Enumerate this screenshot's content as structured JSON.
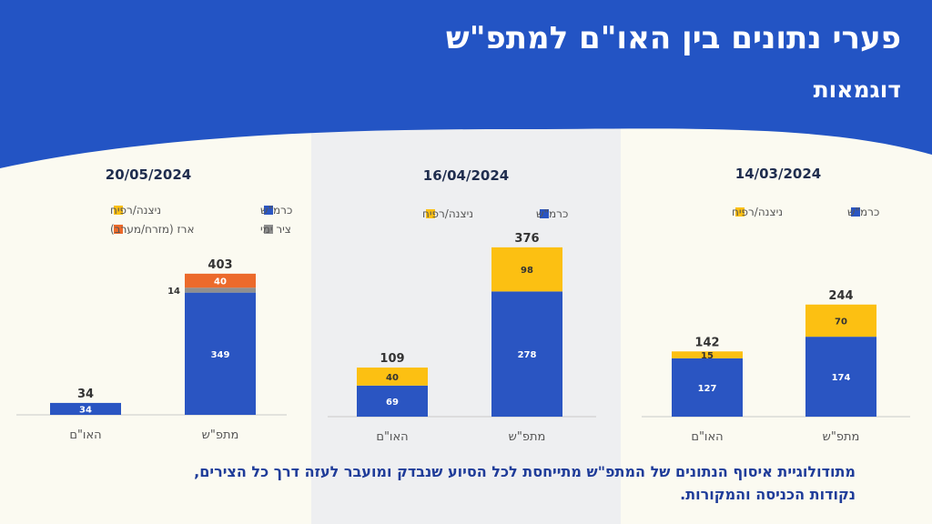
{
  "header": {
    "title": "פערי נתונים בין האו\"ם למתפ\"ש",
    "subtitle": "דוגמאות"
  },
  "footnote": {
    "line1": "מתודולוגיית איסוף הנתונים של המתפ\"ש מתייחסת לכל הסיוע שנבדק ומועבר לעזה דרך כל הצירים,",
    "line2": "נקודות הכניסה והמקורות."
  },
  "colors": {
    "header_blue": "#2354c4",
    "kerem_shalom": "#2a55c2",
    "nitzana_rafah": "#fcc012",
    "erez": "#ec6a2b",
    "sea_route": "#8f8f8f",
    "mid_panel": "#eeeff1",
    "page_bg": "#fbfaf1"
  },
  "chart_data": [
    {
      "type": "bar",
      "stacked": true,
      "title": "14/03/2024",
      "categories": [
        "האו\"ם",
        "מתפ\"ש"
      ],
      "series": [
        {
          "name": "כרמ\"ש",
          "color": "#2a55c2",
          "values": [
            127,
            174
          ]
        },
        {
          "name": "ניצנה/רפיח",
          "color": "#fcc012",
          "values": [
            15,
            70
          ]
        }
      ],
      "totals": [
        142,
        244
      ],
      "ylim": [
        0,
        420
      ]
    },
    {
      "type": "bar",
      "stacked": true,
      "title": "16/04/2024",
      "categories": [
        "האו\"ם",
        "מתפ\"ש"
      ],
      "series": [
        {
          "name": "כרמ\"ש",
          "color": "#2a55c2",
          "values": [
            69,
            278
          ]
        },
        {
          "name": "ניצנה/רפיח",
          "color": "#fcc012",
          "values": [
            40,
            98
          ]
        }
      ],
      "totals": [
        109,
        376
      ],
      "ylim": [
        0,
        420
      ]
    },
    {
      "type": "bar",
      "stacked": true,
      "title": "20/05/2024",
      "categories": [
        "האו\"ם",
        "מתפ\"ש"
      ],
      "series": [
        {
          "name": "כרמ\"ש",
          "color": "#2a55c2",
          "values": [
            34,
            349
          ]
        },
        {
          "name": "ניצנה/רפיח",
          "color": "#fcc012",
          "values": [
            0,
            0
          ]
        },
        {
          "name": "ציר ימי",
          "color": "#8f8f8f",
          "values": [
            0,
            14
          ]
        },
        {
          "name": "ארז (מזרח/מערב)",
          "color": "#ec6a2b",
          "values": [
            0,
            40
          ]
        }
      ],
      "totals": [
        34,
        403
      ],
      "ylim": [
        0,
        420
      ]
    }
  ]
}
